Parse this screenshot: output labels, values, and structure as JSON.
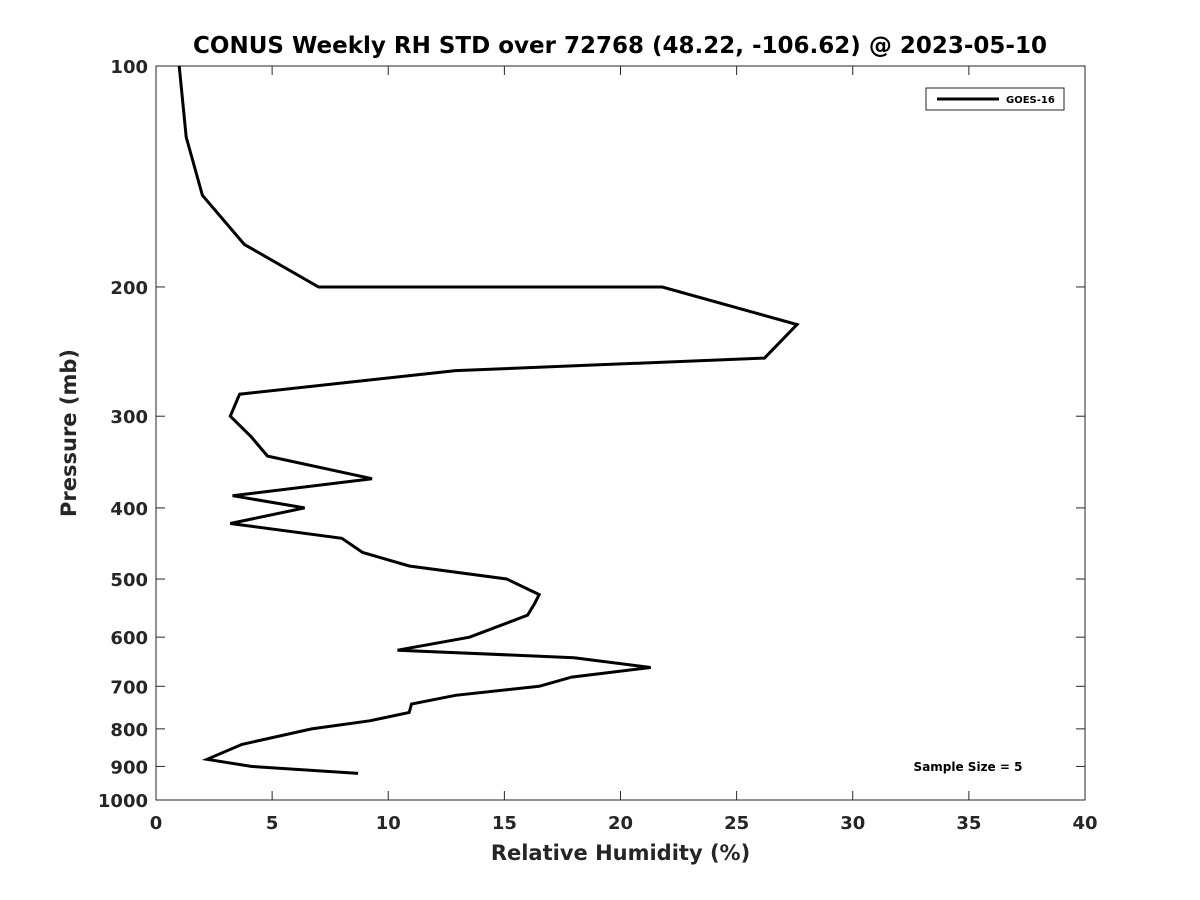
{
  "chart_data": {
    "type": "line",
    "title": "CONUS Weekly RH STD over 72768 (48.22, -106.62) @ 2023-05-10",
    "xlabel": "Relative Humidity (%)",
    "ylabel": "Pressure (mb)",
    "xlim": [
      0,
      40
    ],
    "ylim": [
      100,
      1000
    ],
    "y_scale": "log",
    "y_reversed": true,
    "x_ticks": [
      0,
      5,
      10,
      15,
      20,
      25,
      30,
      35,
      40
    ],
    "y_ticks": [
      100,
      200,
      300,
      400,
      500,
      600,
      700,
      800,
      900,
      1000
    ],
    "grid": false,
    "legend_position": "top-right",
    "series": [
      {
        "name": "GOES-16",
        "color": "#000000",
        "points": [
          {
            "x": 1.0,
            "y": 100
          },
          {
            "x": 1.3,
            "y": 125
          },
          {
            "x": 2.0,
            "y": 150
          },
          {
            "x": 3.8,
            "y": 175
          },
          {
            "x": 7.0,
            "y": 200
          },
          {
            "x": 21.8,
            "y": 200
          },
          {
            "x": 27.6,
            "y": 225
          },
          {
            "x": 26.2,
            "y": 250
          },
          {
            "x": 12.9,
            "y": 260
          },
          {
            "x": 3.6,
            "y": 280
          },
          {
            "x": 3.2,
            "y": 300
          },
          {
            "x": 4.1,
            "y": 320
          },
          {
            "x": 4.8,
            "y": 340
          },
          {
            "x": 9.3,
            "y": 365
          },
          {
            "x": 3.3,
            "y": 385
          },
          {
            "x": 6.4,
            "y": 400
          },
          {
            "x": 3.2,
            "y": 420
          },
          {
            "x": 8.0,
            "y": 440
          },
          {
            "x": 8.9,
            "y": 460
          },
          {
            "x": 10.9,
            "y": 480
          },
          {
            "x": 15.1,
            "y": 500
          },
          {
            "x": 16.5,
            "y": 525
          },
          {
            "x": 16.3,
            "y": 540
          },
          {
            "x": 16.0,
            "y": 560
          },
          {
            "x": 13.5,
            "y": 600
          },
          {
            "x": 10.4,
            "y": 625
          },
          {
            "x": 18.0,
            "y": 640
          },
          {
            "x": 21.3,
            "y": 660
          },
          {
            "x": 17.9,
            "y": 680
          },
          {
            "x": 16.5,
            "y": 700
          },
          {
            "x": 12.9,
            "y": 720
          },
          {
            "x": 11.0,
            "y": 740
          },
          {
            "x": 10.9,
            "y": 760
          },
          {
            "x": 9.2,
            "y": 780
          },
          {
            "x": 6.7,
            "y": 800
          },
          {
            "x": 3.7,
            "y": 840
          },
          {
            "x": 2.2,
            "y": 880
          },
          {
            "x": 4.1,
            "y": 900
          },
          {
            "x": 8.7,
            "y": 920
          }
        ]
      }
    ],
    "annotations": [
      "Sample Size = 5"
    ]
  }
}
